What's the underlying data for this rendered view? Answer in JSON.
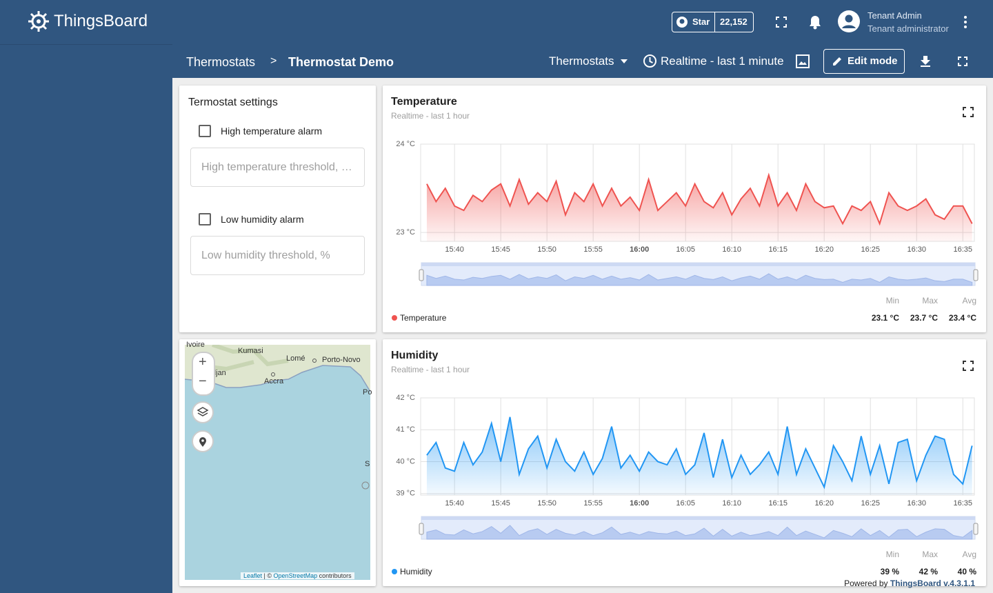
{
  "header": {
    "logo": "ThingsBoard",
    "star_label": "Star",
    "star_count": "22,152",
    "user_name": "Tenant Admin",
    "user_role": "Tenant administrator"
  },
  "breadcrumb": {
    "parent": "Thermostats",
    "separator": ">",
    "current": "Thermostat Demo"
  },
  "toolbar": {
    "state": "Thermostats",
    "timewindow": "Realtime - last 1 minute",
    "edit": "Edit mode"
  },
  "settings_widget": {
    "title": "Termostat settings",
    "high_alarm": "High temperature alarm",
    "high_placeholder": "High temperature threshold, …",
    "low_alarm": "Low humidity alarm",
    "low_placeholder": "Low humidity threshold, %"
  },
  "map": {
    "labels": [
      "Ivoire",
      "Kumasi",
      "Lomé",
      "Porto-Novo",
      "djan",
      "Accra",
      "Po",
      "S"
    ],
    "attribution_link1": "Leaflet",
    "attribution_sep": "| ©",
    "attribution_link2": "OpenStreetMap",
    "attribution_tail": "contributors"
  },
  "chart_data": [
    {
      "type": "line",
      "title": "Temperature",
      "subtitle": "Realtime - last 1 hour",
      "x": [
        "15:37",
        "15:38",
        "15:39",
        "15:40",
        "15:41",
        "15:42",
        "15:43",
        "15:44",
        "15:45",
        "15:46",
        "15:47",
        "15:48",
        "15:49",
        "15:50",
        "15:51",
        "15:52",
        "15:53",
        "15:54",
        "15:55",
        "15:56",
        "15:57",
        "15:58",
        "15:59",
        "16:00",
        "16:01",
        "16:02",
        "16:03",
        "16:04",
        "16:05",
        "16:06",
        "16:07",
        "16:08",
        "16:09",
        "16:10",
        "16:11",
        "16:12",
        "16:13",
        "16:14",
        "16:15",
        "16:16",
        "16:17",
        "16:18",
        "16:19",
        "16:20",
        "16:21",
        "16:22",
        "16:23",
        "16:24",
        "16:25",
        "16:26",
        "16:27",
        "16:28",
        "16:29",
        "16:30",
        "16:31",
        "16:32",
        "16:33",
        "16:34",
        "16:35",
        "16:36"
      ],
      "series": [
        {
          "name": "Temperature",
          "color": "#ef5350",
          "values": [
            23.55,
            23.35,
            23.5,
            23.3,
            23.25,
            23.42,
            23.35,
            23.48,
            23.55,
            23.3,
            23.6,
            23.32,
            23.45,
            23.35,
            23.58,
            23.2,
            23.45,
            23.35,
            23.55,
            23.3,
            23.5,
            23.3,
            23.4,
            23.25,
            23.6,
            23.25,
            23.35,
            23.45,
            23.3,
            23.55,
            23.35,
            23.28,
            23.45,
            23.2,
            23.38,
            23.5,
            23.3,
            23.65,
            23.3,
            23.45,
            23.25,
            23.55,
            23.35,
            23.28,
            23.3,
            23.1,
            23.3,
            23.25,
            23.35,
            23.1,
            23.45,
            23.3,
            23.25,
            23.3,
            23.38,
            23.2,
            23.15,
            23.3,
            23.3,
            23.1
          ]
        }
      ],
      "xlim": [
        "15:36:20",
        "16:36:15"
      ],
      "xticks": [
        "15:40",
        "15:45",
        "15:50",
        "15:55",
        "16:00",
        "16:05",
        "16:10",
        "16:15",
        "16:20",
        "16:25",
        "16:30",
        "16:35"
      ],
      "ylim": [
        22.9,
        24
      ],
      "yticks": [
        {
          "value": 23,
          "label": "23 °C"
        },
        {
          "value": 24,
          "label": "24 °C"
        }
      ],
      "grid": true,
      "stats": [
        {
          "label": "Min",
          "value": "23.1 °C"
        },
        {
          "label": "Max",
          "value": "23.7 °C"
        },
        {
          "label": "Avg",
          "value": "23.4 °C"
        }
      ]
    },
    {
      "type": "line",
      "title": "Humidity",
      "subtitle": "Realtime - last 1 hour",
      "x": [
        "15:37",
        "15:38",
        "15:39",
        "15:40",
        "15:41",
        "15:42",
        "15:43",
        "15:44",
        "15:45",
        "15:46",
        "15:47",
        "15:48",
        "15:49",
        "15:50",
        "15:51",
        "15:52",
        "15:53",
        "15:54",
        "15:55",
        "15:56",
        "15:57",
        "15:58",
        "15:59",
        "16:00",
        "16:01",
        "16:02",
        "16:03",
        "16:04",
        "16:05",
        "16:06",
        "16:07",
        "16:08",
        "16:09",
        "16:10",
        "16:11",
        "16:12",
        "16:13",
        "16:14",
        "16:15",
        "16:16",
        "16:17",
        "16:18",
        "16:19",
        "16:20",
        "16:21",
        "16:22",
        "16:23",
        "16:24",
        "16:25",
        "16:26",
        "16:27",
        "16:28",
        "16:29",
        "16:30",
        "16:31",
        "16:32",
        "16:33",
        "16:34",
        "16:35",
        "16:36"
      ],
      "series": [
        {
          "name": "Humidity",
          "color": "#2196f3",
          "values": [
            40.2,
            40.6,
            39.8,
            39.7,
            40.6,
            39.9,
            40.3,
            41.2,
            40.0,
            41.4,
            39.6,
            40.4,
            40.8,
            39.8,
            40.7,
            40.0,
            39.7,
            40.3,
            39.6,
            40.1,
            41.1,
            39.8,
            40.2,
            39.7,
            40.3,
            40.0,
            39.9,
            40.4,
            39.6,
            39.9,
            40.9,
            39.5,
            40.7,
            39.5,
            40.2,
            39.6,
            39.9,
            40.3,
            39.6,
            41.1,
            39.6,
            40.4,
            39.8,
            39.2,
            40.5,
            40.0,
            39.4,
            40.8,
            39.6,
            40.5,
            39.3,
            40.6,
            40.7,
            39.4,
            40.2,
            40.8,
            40.7,
            39.6,
            39.3,
            40.5
          ]
        }
      ],
      "xlim": [
        "15:36:20",
        "16:36:15"
      ],
      "xticks": [
        "15:40",
        "15:45",
        "15:50",
        "15:55",
        "16:00",
        "16:05",
        "16:10",
        "16:15",
        "16:20",
        "16:25",
        "16:30",
        "16:35"
      ],
      "ylim": [
        38.95,
        42
      ],
      "yticks": [
        {
          "value": 39,
          "label": "39 °C"
        },
        {
          "value": 40,
          "label": "40 °C"
        },
        {
          "value": 41,
          "label": "41 °C"
        },
        {
          "value": 42,
          "label": "42 °C"
        }
      ],
      "grid": true,
      "stats": [
        {
          "label": "Min",
          "value": "39 %"
        },
        {
          "label": "Max",
          "value": "42 %"
        },
        {
          "label": "Avg",
          "value": "40 %"
        }
      ]
    }
  ],
  "footer": {
    "prefix": "Powered by",
    "link": "ThingsBoard v.4.3.1.1"
  }
}
